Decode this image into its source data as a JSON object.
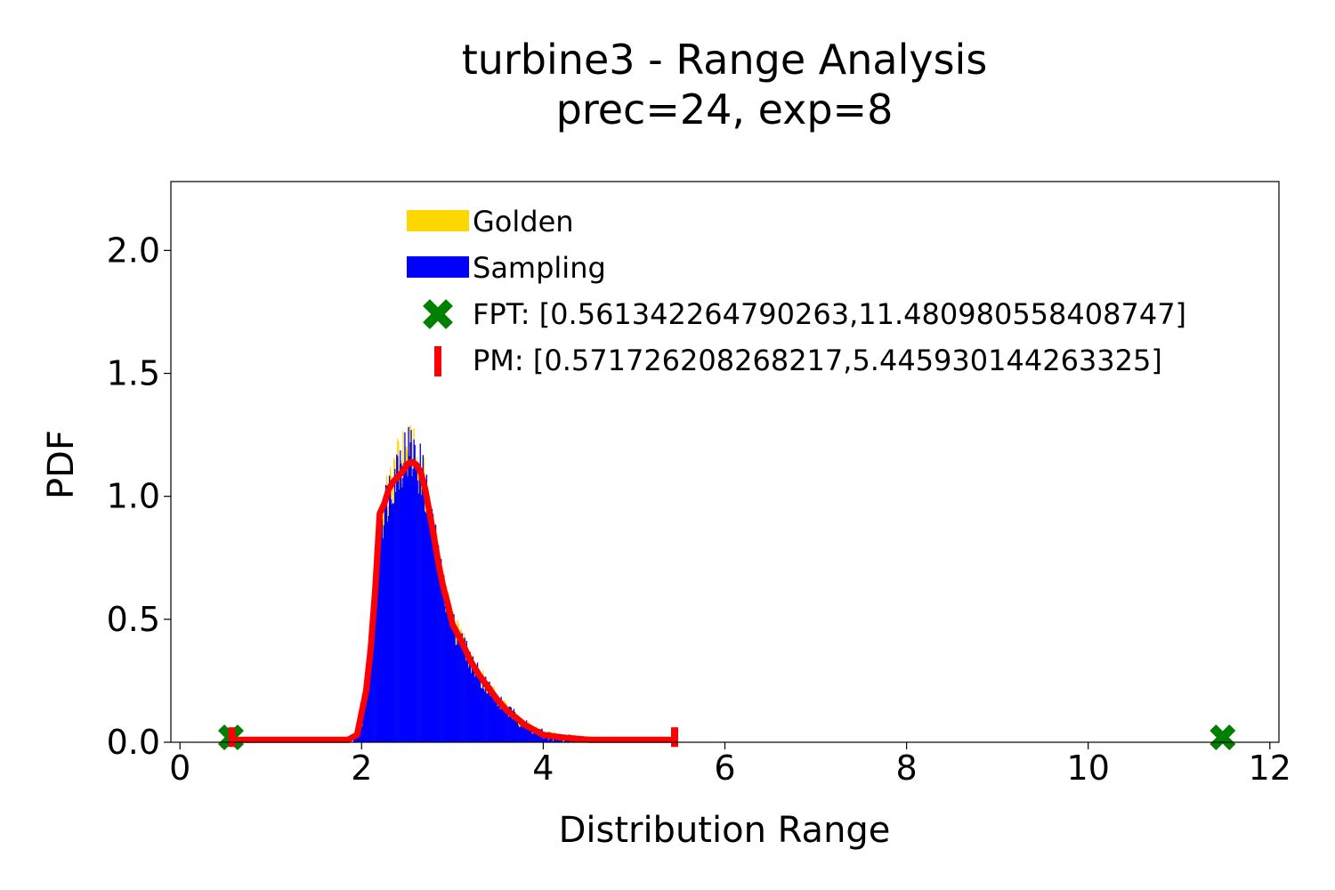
{
  "chart_data": {
    "type": "histogram",
    "title_line1": "turbine3 - Range Analysis",
    "title_line2": "prec=24, exp=8",
    "xlabel": "Distribution Range",
    "ylabel": "PDF",
    "xlim": [
      -0.1,
      12.1
    ],
    "ylim": [
      0.0,
      2.28
    ],
    "x_ticks": [
      0,
      2,
      4,
      6,
      8,
      10,
      12
    ],
    "x_tick_labels": [
      "0",
      "2",
      "4",
      "6",
      "8",
      "10",
      "12"
    ],
    "y_ticks": [
      0.0,
      0.5,
      1.0,
      1.5,
      2.0
    ],
    "y_tick_labels": [
      "0.0",
      "0.5",
      "1.0",
      "1.5",
      "2.0"
    ],
    "legend_position": "top-center",
    "colors": {
      "golden": "#ffd700",
      "sampling": "#0000ff",
      "fpt": "#008000",
      "pm": "#ff0000"
    },
    "legend": {
      "golden": "Golden",
      "sampling": "Sampling",
      "fpt": "FPT: [0.561342264790263,11.480980558408747]",
      "pm": "PM: [0.571726208268217,5.445930144263325]"
    },
    "fpt_range": [
      0.561342264790263,
      11.480980558408747
    ],
    "pm_range": [
      0.571726208268217,
      5.445930144263325
    ],
    "pm_curve": {
      "x": [
        0.57,
        1.0,
        1.5,
        1.85,
        1.95,
        2.0,
        2.05,
        2.1,
        2.15,
        2.2,
        2.25,
        2.3,
        2.35,
        2.4,
        2.45,
        2.5,
        2.55,
        2.6,
        2.65,
        2.7,
        2.75,
        2.8,
        2.85,
        2.9,
        2.95,
        3.0,
        3.1,
        3.2,
        3.3,
        3.4,
        3.5,
        3.6,
        3.7,
        3.8,
        3.9,
        4.0,
        4.2,
        4.5,
        5.0,
        5.45
      ],
      "y": [
        0.01,
        0.01,
        0.01,
        0.01,
        0.03,
        0.12,
        0.21,
        0.38,
        0.62,
        0.93,
        0.97,
        1.03,
        1.06,
        1.08,
        1.1,
        1.13,
        1.14,
        1.13,
        1.1,
        1.03,
        0.93,
        0.83,
        0.72,
        0.63,
        0.56,
        0.48,
        0.41,
        0.33,
        0.27,
        0.22,
        0.17,
        0.13,
        0.1,
        0.07,
        0.05,
        0.03,
        0.02,
        0.01,
        0.01,
        0.01
      ]
    },
    "sampling_density": {
      "x": [
        1.9,
        1.95,
        2.0,
        2.05,
        2.1,
        2.15,
        2.2,
        2.25,
        2.3,
        2.35,
        2.4,
        2.45,
        2.5,
        2.55,
        2.6,
        2.65,
        2.7,
        2.75,
        2.8,
        2.85,
        2.9,
        2.95,
        3.0,
        3.1,
        3.2,
        3.3,
        3.4,
        3.5,
        3.6,
        3.7,
        3.8,
        3.9,
        4.0,
        4.2,
        4.5,
        4.8,
        5.0
      ],
      "y": [
        0.0,
        0.02,
        0.08,
        0.2,
        0.38,
        0.62,
        0.88,
        0.95,
        1.02,
        1.08,
        1.12,
        1.16,
        1.18,
        1.17,
        1.14,
        1.1,
        1.03,
        0.93,
        0.83,
        0.72,
        0.63,
        0.56,
        0.48,
        0.41,
        0.33,
        0.27,
        0.22,
        0.17,
        0.13,
        0.1,
        0.07,
        0.05,
        0.03,
        0.015,
        0.006,
        0.002,
        0.0
      ]
    }
  }
}
